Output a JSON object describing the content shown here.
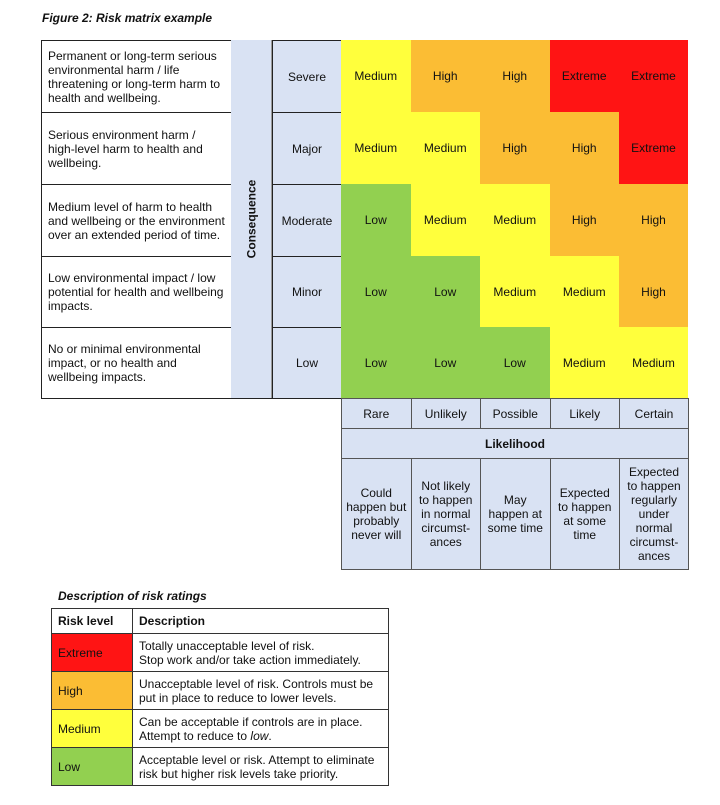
{
  "figure_title": "Figure 2: Risk matrix example",
  "colors": {
    "Extreme": "#ff1414",
    "High": "#fbbd34",
    "Medium": "#ffff3c",
    "Low": "#92d050",
    "header": "#d9e2f3"
  },
  "matrix": {
    "consequence_label": "Consequence",
    "likelihood_label": "Likelihood",
    "rows": [
      {
        "description": "Permanent or long-term serious environmental harm / life threatening or long-term harm to health and wellbeing.",
        "consequence": "Severe",
        "ratings": [
          "Medium",
          "High",
          "High",
          "Extreme",
          "Extreme"
        ]
      },
      {
        "description": "Serious environment harm / high-level harm to health and wellbeing.",
        "consequence": "Major",
        "ratings": [
          "Medium",
          "Medium",
          "High",
          "High",
          "Extreme"
        ]
      },
      {
        "description": "Medium level of harm to health and wellbeing or the environment over an extended period of time.",
        "consequence": "Moderate",
        "ratings": [
          "Low",
          "Medium",
          "Medium",
          "High",
          "High"
        ]
      },
      {
        "description": " Low environmental impact / low potential for health and wellbeing impacts.",
        "consequence": "Minor",
        "ratings": [
          "Low",
          "Low",
          "Medium",
          "Medium",
          "High"
        ]
      },
      {
        "description": "No or minimal environmental impact, or no health and wellbeing impacts.",
        "consequence": "Low",
        "ratings": [
          "Low",
          "Low",
          "Low",
          "Medium",
          "Medium"
        ]
      }
    ],
    "likelihoods": [
      {
        "label": "Rare",
        "description": "Could happen but probably never will"
      },
      {
        "label": "Unlikely",
        "description": "Not likely to happen in normal circumst-ances"
      },
      {
        "label": "Possible",
        "description": "May happen at some time"
      },
      {
        "label": "Likely",
        "description": "Expected to happen at some time"
      },
      {
        "label": "Certain",
        "description": "Expected to happen regularly under normal circumst-ances"
      }
    ]
  },
  "ratings_table": {
    "title": "Description of risk ratings",
    "headers": [
      "Risk level",
      "Description"
    ],
    "rows": [
      {
        "level": "Extreme",
        "line1": "Totally unacceptable level of risk.",
        "line2": "Stop work and/or take action immediately."
      },
      {
        "level": "High",
        "line1": "Unacceptable level of risk. Controls must be",
        "line2": "put in place to reduce to lower levels."
      },
      {
        "level": "Medium",
        "line1": "Can be acceptable if controls are in place.",
        "line2": "Attempt to reduce to ",
        "line2_italic": "low",
        "line2_end": "."
      },
      {
        "level": "Low",
        "line1": "Acceptable level or risk. Attempt to eliminate",
        "line2": "risk but higher risk levels take priority."
      }
    ]
  }
}
